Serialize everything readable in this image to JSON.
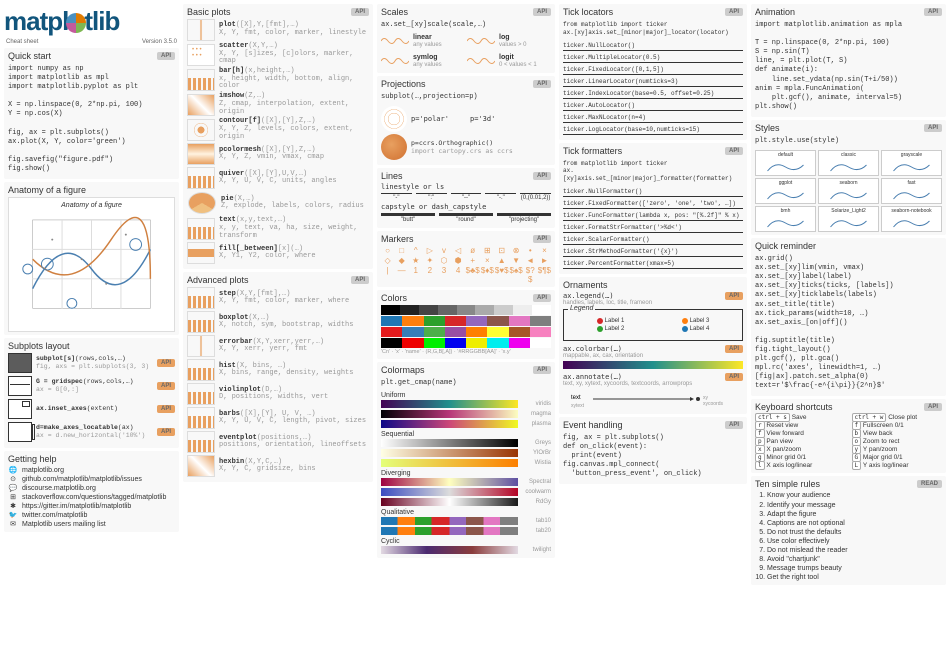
{
  "logo": {
    "text": "matpl",
    "text2": "tlib",
    "sub1": "Cheat sheet",
    "sub2": "Version 3.5.0"
  },
  "quickstart": {
    "title": "Quick start",
    "badge": "API",
    "code": "import numpy as np\nimport matplotlib as mpl\nimport matplotlib.pyplot as plt\n\nX = np.linspace(0, 2*np.pi, 100)\nY = np.cos(X)\n\nfig, ax = plt.subplots()\nax.plot(X, Y, color='green')\n\nfig.savefig(\"figure.pdf\")\nfig.show()"
  },
  "anatomy": {
    "title": "Anatomy of a figure",
    "label": "Anatomy of a figure"
  },
  "subplots": {
    "title": "Subplots layout",
    "items": [
      {
        "sig": "subplot[s](rows,cols,…)",
        "sub": "fig, axs = plt.subplots(3, 3)",
        "badge": "API"
      },
      {
        "sig": "G = gridspec(rows,cols,…)",
        "sub": "ax = G[0,:]",
        "badge": "API"
      },
      {
        "sig": "ax.inset_axes(extent)",
        "sub": "",
        "badge": "API"
      },
      {
        "sig": "d=make_axes_locatable(ax)",
        "sub": "ax = d.new_horizontal('10%')",
        "badge": "API"
      }
    ]
  },
  "help": {
    "title": "Getting help",
    "items": [
      {
        "icon": "🌐",
        "text": "matplotlib.org"
      },
      {
        "icon": "⊙",
        "text": "github.com/matplotlib/matplotlib/issues"
      },
      {
        "icon": "💬",
        "text": "discourse.matplotlib.org"
      },
      {
        "icon": "⊞",
        "text": "stackoverflow.com/questions/tagged/matplotlib"
      },
      {
        "icon": "✱",
        "text": "https://gitter.im/matplotlib/matplotlib"
      },
      {
        "icon": "🐦",
        "text": "twitter.com/matplotlib"
      },
      {
        "icon": "✉",
        "text": "Matplotlib users mailing list"
      }
    ]
  },
  "basic": {
    "title": "Basic plots",
    "badge": "API",
    "items": [
      {
        "fn": "plot",
        "sig": "([X],Y,[fmt],…)",
        "sub": "X, Y, fmt, color, marker, linestyle"
      },
      {
        "fn": "scatter",
        "sig": "(X,Y,…)",
        "sub": "X, Y, [s]izes, [c]olors, marker, cmap"
      },
      {
        "fn": "bar[h]",
        "sig": "(x,height,…)",
        "sub": "x, height, width, bottom, align, color"
      },
      {
        "fn": "imshow",
        "sig": "(Z,…)",
        "sub": "Z, cmap, interpolation, extent, origin"
      },
      {
        "fn": "contour[f]",
        "sig": "([X],[Y],Z,…)",
        "sub": "X, Y, Z, levels, colors, extent, origin"
      },
      {
        "fn": "pcolormesh",
        "sig": "([X],[Y],Z,…)",
        "sub": "X, Y, Z, vmin, vmax, cmap"
      },
      {
        "fn": "quiver",
        "sig": "([X],[Y],U,V,…)",
        "sub": "X, Y, U, V, C, units, angles"
      },
      {
        "fn": "pie",
        "sig": "(X,…)",
        "sub": "Z, explode, labels, colors, radius"
      },
      {
        "fn": "text",
        "sig": "(x,y,text,…)",
        "sub": "x, y, text, va, ha, size, weight, transform"
      },
      {
        "fn": "fill[_between]",
        "sig": "[x](…)",
        "sub": "X, Y1, Y2, color, where"
      }
    ]
  },
  "advanced": {
    "title": "Advanced plots",
    "badge": "API",
    "items": [
      {
        "fn": "step",
        "sig": "(X,Y,[fmt],…)",
        "sub": "X, Y, fmt, color, marker, where"
      },
      {
        "fn": "boxplot",
        "sig": "(X,…)",
        "sub": "X, notch, sym, bootstrap, widths"
      },
      {
        "fn": "errorbar",
        "sig": "(X,Y,xerr,yerr,…)",
        "sub": "X, Y, xerr, yerr, fmt"
      },
      {
        "fn": "hist",
        "sig": "(X, bins, …)",
        "sub": "X, bins, range, density, weights"
      },
      {
        "fn": "violinplot",
        "sig": "(D,…)",
        "sub": "D, positions, widths, vert"
      },
      {
        "fn": "barbs",
        "sig": "([X],[Y], U, V, …)",
        "sub": "X, Y, U, V, C, length, pivot, sizes"
      },
      {
        "fn": "eventplot",
        "sig": "(positions,…)",
        "sub": "positions, orientation, lineoffsets"
      },
      {
        "fn": "hexbin",
        "sig": "(X,Y,C,…)",
        "sub": "X, Y, C, gridsize, bins"
      }
    ]
  },
  "scales": {
    "title": "Scales",
    "badge": "API",
    "code": "ax.set_[xy]scale(scale,…)",
    "items": [
      {
        "name": "linear",
        "desc": "any values"
      },
      {
        "name": "log",
        "desc": "values > 0"
      },
      {
        "name": "symlog",
        "desc": "any values"
      },
      {
        "name": "logit",
        "desc": "0 < values < 1"
      }
    ]
  },
  "projections": {
    "title": "Projections",
    "badge": "API",
    "code": "subplot(…,projection=p)",
    "items": [
      {
        "label": "p='polar'",
        "label2": "p='3d'"
      },
      {
        "label": "p=ccrs.Orthographic()",
        "sub": "import cartopy.crs as ccrs"
      }
    ]
  },
  "lines": {
    "title": "Lines",
    "badge": "API",
    "ls_title": "linestyle or ls",
    "ls": [
      "\"-\"",
      "\":\"",
      "\"--\"",
      "\"-.\"",
      "(0,(0.01,2))"
    ],
    "cap_title": "capstyle or dash_capstyle",
    "caps": [
      "\"butt\"",
      "\"round\"",
      "\"projecting\""
    ]
  },
  "markers": {
    "title": "Markers",
    "badge": "API",
    "glyphs": [
      "○",
      "□",
      "^",
      "▷",
      "v",
      "◁",
      "ø",
      "⊞",
      "⊡",
      "⊗",
      "•",
      "×",
      "◇",
      "◆",
      "★",
      "✦",
      "⬡",
      "⬢",
      "+",
      "×",
      "▲",
      "▼",
      "◄",
      "►",
      "|",
      "—",
      "1",
      "2",
      "3",
      "4",
      "$♣$",
      "$♦$",
      "$♥$",
      "$♠$",
      "$?$",
      "$¶$"
    ]
  },
  "colors": {
    "title": "Colors",
    "badge": "API",
    "bars": [
      [
        "#000",
        "#222",
        "#444",
        "#666",
        "#888",
        "#aaa",
        "#ccc",
        "#eee",
        "#fff"
      ],
      [
        "#1f77b4",
        "#ff7f0e",
        "#2ca02c",
        "#d62728",
        "#9467bd",
        "#8c564b",
        "#e377c2",
        "#7f7f7f"
      ],
      [
        "#e41a1c",
        "#377eb8",
        "#4daf4a",
        "#984ea3",
        "#ff7f00",
        "#ffff33",
        "#a65628",
        "#f781bf"
      ],
      [
        "#000",
        "#e00",
        "#0e0",
        "#00e",
        "#ee0",
        "#0ee",
        "#e0e",
        "#fff"
      ]
    ],
    "labels": [
      "'Cn'",
      "'x'",
      "'name'",
      "(R,G,B[,A])",
      "'#RRGGBB[AA]'",
      "'x.y'"
    ]
  },
  "colormaps": {
    "title": "Colormaps",
    "badge": "API",
    "code": "plt.get_cmap(name)",
    "groups": [
      {
        "title": "Uniform",
        "maps": [
          {
            "name": "viridis",
            "g": "#440154,#21908c,#fde725"
          },
          {
            "name": "magma",
            "g": "#000004,#b73779,#fcfdbf"
          },
          {
            "name": "plasma",
            "g": "#0d0887,#cc4778,#f0f921"
          }
        ]
      },
      {
        "title": "Sequential",
        "maps": [
          {
            "name": "Greys",
            "g": "#fff,#000"
          },
          {
            "name": "YlOrBr",
            "g": "#ffffe5,#993404"
          },
          {
            "name": "Wistia",
            "g": "#e4ff7a,#fc7f00"
          }
        ]
      },
      {
        "title": "Diverging",
        "maps": [
          {
            "name": "Spectral",
            "g": "#9e0142,#ffffbf,#5e4fa2"
          },
          {
            "name": "coolwarm",
            "g": "#3b4cc0,#dcdcdc,#b40426"
          },
          {
            "name": "RdGy",
            "g": "#67001f,#fff,#1a1a1a"
          }
        ]
      },
      {
        "title": "Qualitative",
        "maps": [
          {
            "name": "tab10",
            "g": ""
          },
          {
            "name": "tab20",
            "g": ""
          }
        ]
      },
      {
        "title": "Cyclic",
        "maps": [
          {
            "name": "twilight",
            "g": "#e2d9e2,#4b2a70,#8a3c3c,#e2d9e2"
          }
        ]
      }
    ]
  },
  "ticklocators": {
    "title": "Tick locators",
    "badge": "API",
    "code": "from matplotlib import ticker\nax.[xy]axis.set_[minor|major]_locator(locator)",
    "items": [
      "ticker.NullLocator()",
      "ticker.MultipleLocator(0.5)",
      "ticker.FixedLocator([0,1,5])",
      "ticker.LinearLocator(numticks=3)",
      "ticker.IndexLocator(base=0.5, offset=0.25)",
      "ticker.AutoLocator()",
      "ticker.MaxNLocator(n=4)",
      "ticker.LogLocator(base=10,numticks=15)"
    ]
  },
  "tickformatters": {
    "title": "Tick formatters",
    "badge": "API",
    "code": "from matplotlib import ticker\nax.[xy]axis.set_[minor|major]_formatter(formatter)",
    "items": [
      "ticker.NullFormatter()",
      "ticker.FixedFormatter(['zero', 'one', 'two', …])",
      "ticker.FuncFormatter(lambda x, pos: \"[%.2f]\" % x)",
      "ticker.FormatStrFormatter('>%d<')",
      "ticker.ScalarFormatter()",
      "ticker.StrMethodFormatter('{x}')",
      "ticker.PercentFormatter(xmax=5)"
    ]
  },
  "ornaments": {
    "title": "Ornaments",
    "legend": {
      "sig": "ax.legend(…)",
      "sub": "handles, labels, loc, title, frameon",
      "badge": "API",
      "title": "Legend",
      "items": [
        "Label 1",
        "Label 2",
        "Label 3",
        "Label 4"
      ],
      "colors": [
        "#d62728",
        "#2ca02c",
        "#ff7f0e",
        "#1f77b4"
      ]
    },
    "colorbar": {
      "sig": "ax.colorbar(…)",
      "sub": "mappable, ax, cax, orientation",
      "badge": "API"
    },
    "annotate": {
      "sig": "ax.annotate(…)",
      "sub": "text, xy, xytext, xycoords, textcoords, arrowprops",
      "badge": "API",
      "label_text": "text",
      "label_xytext": "xytext",
      "label_xy": "xy\nxycoords"
    }
  },
  "events": {
    "title": "Event handling",
    "badge": "API",
    "code": "fig, ax = plt.subplots()\ndef on_click(event):\n  print(event)\nfig.canvas.mpl_connect(\n  'button_press_event', on_click)"
  },
  "animation": {
    "title": "Animation",
    "badge": "API",
    "code": "import matplotlib.animation as mpla\n\nT = np.linspace(0, 2*np.pi, 100)\nS = np.sin(T)\nline, = plt.plot(T, S)\ndef animate(i):\n    line.set_ydata(np.sin(T+i/50))\nanim = mpla.FuncAnimation(\n    plt.gcf(), animate, interval=5)\nplt.show()"
  },
  "styles": {
    "title": "Styles",
    "badge": "API",
    "code": "plt.style.use(style)",
    "names": [
      "default",
      "classic",
      "grayscale",
      "ggplot",
      "seaborn",
      "fast",
      "bmh",
      "Solarize_Light2",
      "seaborn-notebook"
    ]
  },
  "reminder": {
    "title": "Quick reminder",
    "code": "ax.grid()\nax.set_[xy]lim(vmin, vmax)\nax.set_[xy]label(label)\nax.set_[xy]ticks(ticks, [labels])\nax.set_[xy]ticklabels(labels)\nax.set_title(title)\nax.tick_params(width=10, …)\nax.set_axis_[on|off]()\n\nfig.suptitle(title)\nfig.tight_layout()\nplt.gcf(), plt.gca()\nmpl.rc('axes', linewidth=1, …)\n[fig|ax].patch.set_alpha(0)\ntext=r'$\\frac{-e^{i\\pi}}{2^n}$'"
  },
  "shortcuts": {
    "title": "Keyboard shortcuts",
    "badge": "API",
    "rows": [
      [
        {
          "k": "ctrl + s",
          "d": "Save"
        },
        {
          "k": "ctrl + w",
          "d": "Close plot"
        }
      ],
      [
        {
          "k": "r",
          "d": "Reset view"
        },
        {
          "k": "f",
          "d": "Fullscreen 0/1"
        }
      ],
      [
        {
          "k": "f",
          "d": "View forward"
        },
        {
          "k": "b",
          "d": "View back"
        }
      ],
      [
        {
          "k": "p",
          "d": "Pan view"
        },
        {
          "k": "o",
          "d": "Zoom to rect"
        }
      ],
      [
        {
          "k": "x",
          "d": "X pan/zoom"
        },
        {
          "k": "y",
          "d": "Y pan/zoom"
        }
      ],
      [
        {
          "k": "g",
          "d": "Minor grid 0/1"
        },
        {
          "k": "G",
          "d": "Major grid 0/1"
        }
      ],
      [
        {
          "k": "l",
          "d": "X axis log/linear"
        },
        {
          "k": "L",
          "d": "Y axis log/linear"
        }
      ]
    ]
  },
  "rules": {
    "title": "Ten simple rules",
    "badge": "READ",
    "items": [
      "Know your audience",
      "Identify your message",
      "Adapt the figure",
      "Captions are not optional",
      "Do not trust the defaults",
      "Use color effectively",
      "Do not mislead the reader",
      "Avoid \"chartjunk\"",
      "Message trumps beauty",
      "Get the right tool"
    ]
  }
}
